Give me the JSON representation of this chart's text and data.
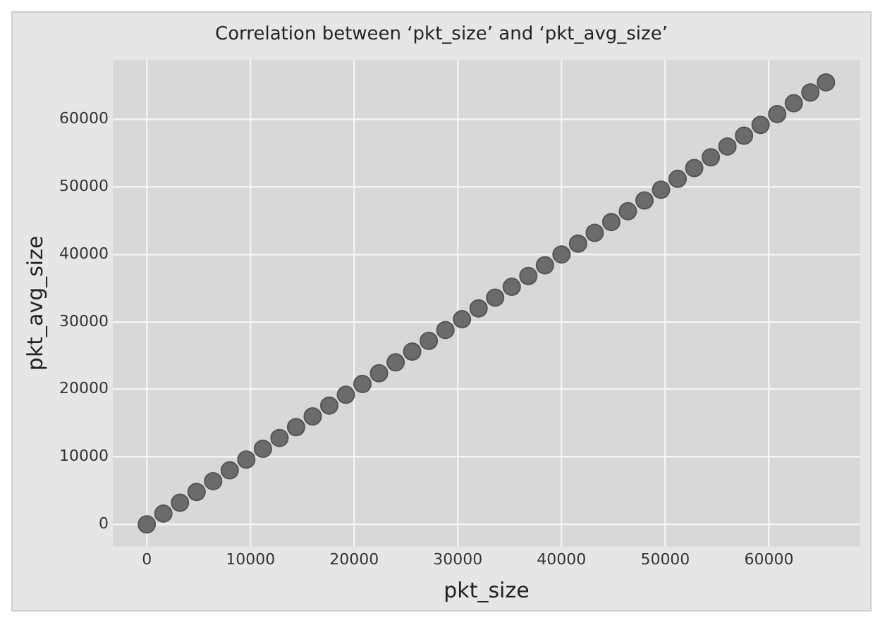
{
  "chart_data": {
    "type": "scatter",
    "title": "Correlation between ‘pkt_size’ and ‘pkt_avg_size’",
    "xlabel": "pkt_size",
    "ylabel": "pkt_avg_size",
    "x": [
      0,
      1600,
      3200,
      4800,
      6400,
      8000,
      9600,
      11200,
      12800,
      14400,
      16000,
      17600,
      19200,
      20800,
      22400,
      24000,
      25600,
      27200,
      28800,
      30400,
      32000,
      33600,
      35200,
      36800,
      38400,
      40000,
      41600,
      43200,
      44800,
      46400,
      48000,
      49600,
      51200,
      52800,
      54400,
      56000,
      57600,
      59200,
      60800,
      62400,
      64000,
      65500
    ],
    "series": [
      {
        "color": "#6b6b6b",
        "values": [
          0,
          1600,
          3200,
          4800,
          6400,
          8000,
          9600,
          11200,
          12800,
          14400,
          16000,
          17600,
          19200,
          20800,
          22400,
          24000,
          25600,
          27200,
          28800,
          30400,
          32000,
          33600,
          35200,
          36800,
          38400,
          40000,
          41600,
          43200,
          44800,
          46400,
          48000,
          49600,
          51200,
          52800,
          54400,
          56000,
          57600,
          59200,
          60800,
          62400,
          64000,
          65500
        ]
      }
    ],
    "xlim": [
      -3277,
      68812
    ],
    "ylim": [
      -3277,
      68812
    ],
    "xticks": [
      0,
      10000,
      20000,
      30000,
      40000,
      50000,
      60000
    ],
    "yticks": [
      0,
      10000,
      20000,
      30000,
      40000,
      50000,
      60000
    ],
    "grid": true,
    "legend": false,
    "marker": "circle"
  }
}
